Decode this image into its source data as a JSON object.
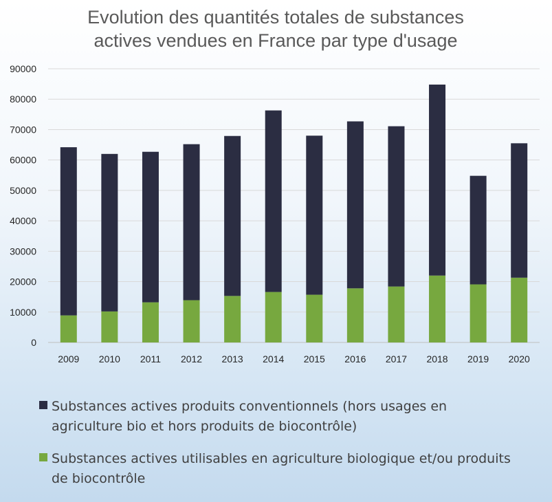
{
  "chart_data": {
    "type": "bar",
    "stacked": true,
    "title_lines": [
      "Evolution des quantités totales de substances",
      "actives vendues en France par type d'usage"
    ],
    "categories": [
      "2009",
      "2010",
      "2011",
      "2012",
      "2013",
      "2014",
      "2015",
      "2016",
      "2017",
      "2018",
      "2019",
      "2020"
    ],
    "ylim": [
      0,
      90000
    ],
    "yticks": [
      0,
      10000,
      20000,
      30000,
      40000,
      50000,
      60000,
      70000,
      80000,
      90000
    ],
    "grid": true,
    "legend_position": "bottom",
    "series": [
      {
        "name_lines": [
          "Substances actives produits conventionnels (hors usages en",
          "agriculture bio et hors produits de biocontrôle)"
        ],
        "color": "#2b2d42",
        "values": [
          55300,
          51800,
          49500,
          51300,
          52600,
          59700,
          52300,
          54900,
          52700,
          62800,
          35700,
          44200
        ]
      },
      {
        "name_lines": [
          "Substances actives utilisables en agriculture biologique et/ou produits",
          "de biocontrôle"
        ],
        "color": "#77a83f",
        "values": [
          8900,
          10200,
          13200,
          13900,
          15300,
          16600,
          15700,
          17800,
          18400,
          22000,
          19100,
          21300
        ]
      }
    ],
    "stack_order": [
      1,
      0
    ]
  }
}
